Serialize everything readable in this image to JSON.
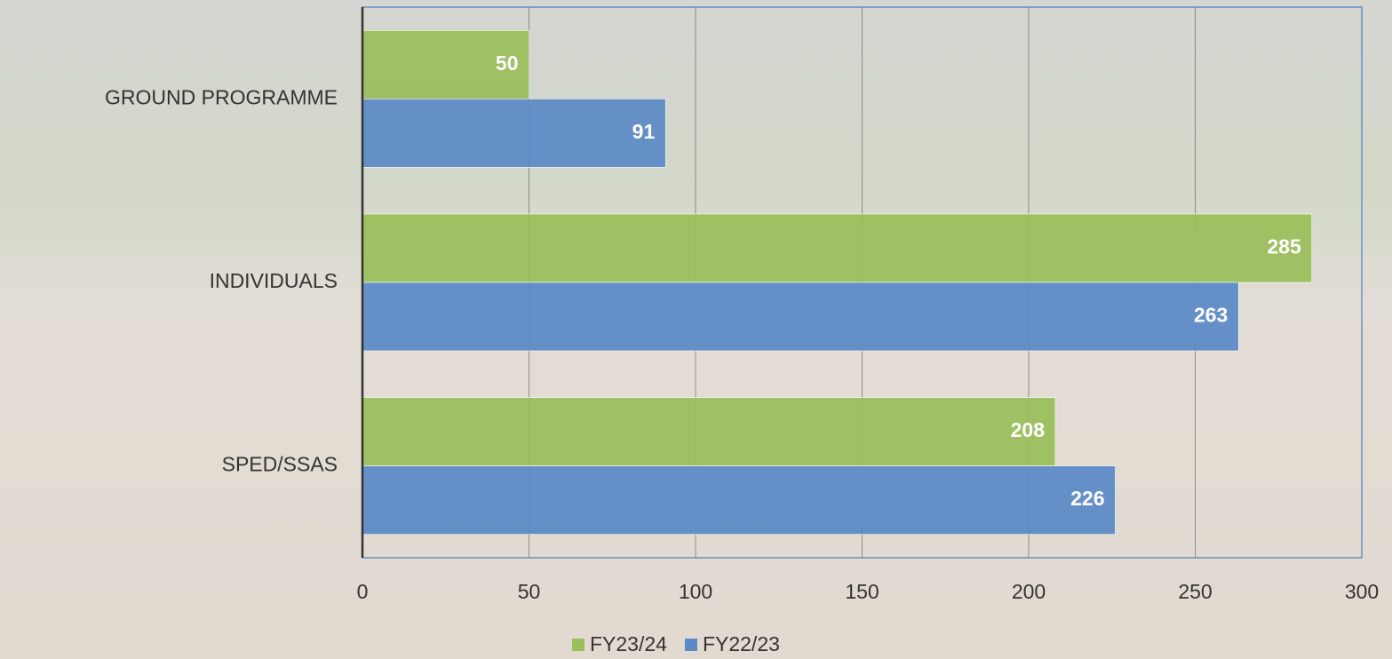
{
  "chart_data": {
    "type": "bar",
    "orientation": "horizontal",
    "categories": [
      "GROUND PROGRAMME",
      "INDIVIDUALS",
      "SPED/SSAS"
    ],
    "series": [
      {
        "name": "FY23/24",
        "color": "#9bbf5a",
        "values": [
          50,
          285,
          208
        ]
      },
      {
        "name": "FY22/23",
        "color": "#5b8ac6",
        "values": [
          91,
          263,
          226
        ]
      }
    ],
    "xlim": [
      0,
      300
    ],
    "xticks": [
      0,
      50,
      100,
      150,
      200,
      250,
      300
    ],
    "grid": true,
    "legend": "bottom"
  }
}
